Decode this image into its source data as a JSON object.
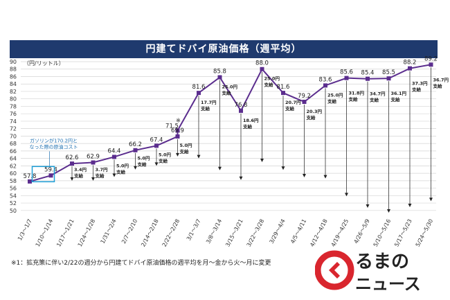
{
  "chart_data": {
    "type": "line",
    "title": "円建てドバイ原油価格（週平均）",
    "ylabel": "（円/リットル）",
    "ylim": [
      50,
      90
    ],
    "yticks": [
      50,
      52,
      54,
      56,
      58,
      60,
      62,
      64,
      66,
      68,
      70,
      72,
      74,
      76,
      78,
      80,
      82,
      84,
      86,
      88,
      90
    ],
    "categories": [
      "1/3〜1/7",
      "1/10〜1/14",
      "1/17〜1/21",
      "1/24〜1/28",
      "1/31〜2/4",
      "2/7〜2/10",
      "2/14〜2/18",
      "2/22〜2/28",
      "3/1〜3/7",
      "3/8〜3/14",
      "3/15〜3/21",
      "3/22〜3/28",
      "3/29〜4/4",
      "4/5〜4/11",
      "4/12〜4/18",
      "4/19〜4/25",
      "4/26〜5/9",
      "5/10〜5/16",
      "5/17〜5/23",
      "5/24〜5/30"
    ],
    "series": [
      {
        "name": "円建てドバイ原油価格",
        "values": [
          57.8,
          59.4,
          62.6,
          62.9,
          64.4,
          66.2,
          67.4,
          69.9,
          81.6,
          85.8,
          76.8,
          88.0,
          81.6,
          79.2,
          83.6,
          85.6,
          85.4,
          85.5,
          88.2,
          89.2
        ],
        "color": "#5b2d8e"
      }
    ],
    "extra_point": {
      "index": 7,
      "value": 71.5,
      "label": "71.5"
    },
    "star_mark": "※",
    "subsidy_labels": [
      {
        "index": 2,
        "amount": "3.4円",
        "word": "支給",
        "arrow_to": 58
      },
      {
        "index": 3,
        "amount": "3.7円",
        "word": "支給",
        "arrow_to": 58
      },
      {
        "index": 4,
        "amount": "5.0円",
        "word": "支給",
        "arrow_to": 59
      },
      {
        "index": 5,
        "amount": "5.0円",
        "word": "支給",
        "arrow_to": 61
      },
      {
        "index": 6,
        "amount": "5.0円",
        "word": "支給",
        "arrow_to": 62
      },
      {
        "index": 7,
        "amount": "5.0円",
        "word": "支給",
        "arrow_to": 64.5
      },
      {
        "index": 8,
        "amount": "17.7円",
        "word": "支給",
        "arrow_to": 64
      },
      {
        "index": 9,
        "amount": "25.0円",
        "word": "支給",
        "arrow_to": 60.8
      },
      {
        "index": 10,
        "amount": "18.6円",
        "word": "支給",
        "arrow_to": 58.2
      },
      {
        "index": 11,
        "amount": "25.0円",
        "word": "支給",
        "arrow_to": 63
      },
      {
        "index": 12,
        "amount": "20.7円",
        "word": "支給",
        "arrow_to": 60.9
      },
      {
        "index": 13,
        "amount": "20.3円",
        "word": "支給",
        "arrow_to": 58.9
      },
      {
        "index": 14,
        "amount": "25.0円",
        "word": "支給",
        "arrow_to": 58.6
      },
      {
        "index": 15,
        "amount": "31.8円",
        "word": "支給",
        "arrow_to": 53.8
      },
      {
        "index": 16,
        "amount": "34.7円",
        "word": "支給",
        "arrow_to": 50.7
      },
      {
        "index": 17,
        "amount": "36.1円",
        "word": "支給",
        "arrow_to": 49.4
      },
      {
        "index": 18,
        "amount": "37.3円",
        "word": "支給",
        "arrow_to": 50.9
      },
      {
        "index": 19,
        "amount": "36.7円",
        "word": "支給",
        "arrow_to": 52.5
      }
    ],
    "annotation": {
      "line1": "ガソリンが170.2円と",
      "line2": "なった際の原油コスト",
      "index": 1
    }
  },
  "footnote": "※1：拡充策に伴い2/22の週分から円建てドバイ原油価格の週平均を月〜金から火〜月に変更",
  "logo": {
    "text_top": "るまの",
    "text_bottom": "ニュース",
    "accent_color": "#d9262e"
  }
}
